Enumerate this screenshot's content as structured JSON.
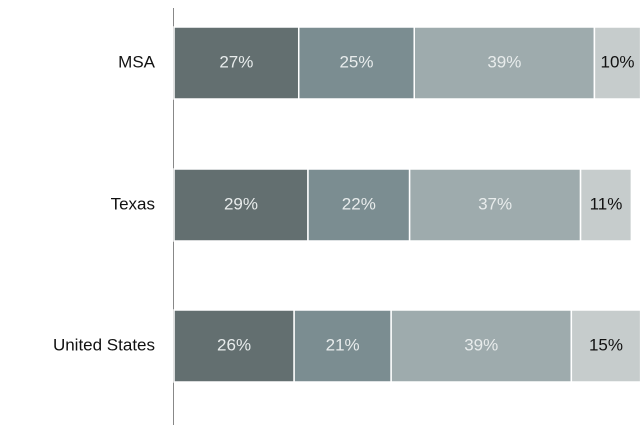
{
  "chart_data": {
    "type": "stacked-bar-horizontal",
    "categories": [
      "MSA",
      "Texas",
      "United States"
    ],
    "series": [
      {
        "color": "#636f70",
        "label_color": "#e8ecec",
        "values": [
          27,
          29,
          26
        ],
        "value_labels": [
          "27%",
          "29%",
          "26%"
        ]
      },
      {
        "color": "#7b8d91",
        "label_color": "#e8ecec",
        "values": [
          25,
          22,
          21
        ],
        "value_labels": [
          "25%",
          "22%",
          "21%"
        ]
      },
      {
        "color": "#9eabad",
        "label_color": "#e8ecec",
        "values": [
          39,
          37,
          39
        ],
        "value_labels": [
          "39%",
          "37%",
          "39%"
        ]
      },
      {
        "color": "#c6cccc",
        "label_color": "#111111",
        "values": [
          10,
          11,
          15
        ],
        "value_labels": [
          "10%",
          "11%",
          "15%"
        ]
      }
    ]
  }
}
